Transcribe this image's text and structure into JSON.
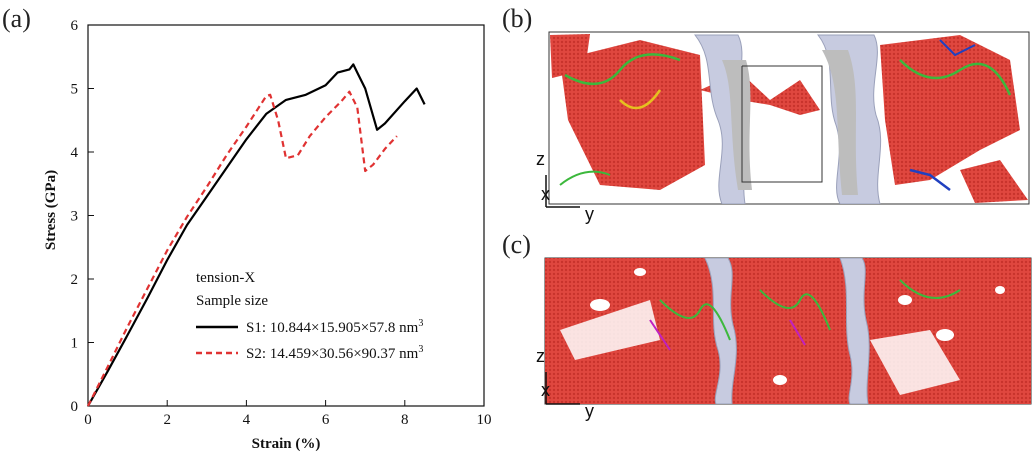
{
  "panels": {
    "a": "(a)",
    "b": "(b)",
    "c": "(c)"
  },
  "chart_data": {
    "type": "line",
    "xlabel": "Strain (%)",
    "ylabel": "Stress (GPa)",
    "xlim": [
      0,
      10
    ],
    "ylim": [
      0,
      6
    ],
    "xticks": [
      "0",
      "2",
      "4",
      "6",
      "8",
      "10"
    ],
    "yticks": [
      "0",
      "1",
      "2",
      "3",
      "4",
      "5",
      "6"
    ],
    "legend_title_1": "tension-X",
    "legend_title_2": "Sample size",
    "series": [
      {
        "name": "S1: 10.844×15.905×57.8 nm",
        "superscript": "3",
        "color": "#000000",
        "style": "solid",
        "x": [
          0,
          0.5,
          1.0,
          1.5,
          2.0,
          2.5,
          3.0,
          3.5,
          4.0,
          4.5,
          5.0,
          5.5,
          6.0,
          6.3,
          6.6,
          6.7,
          6.8,
          7.0,
          7.3,
          7.5,
          8.0,
          8.3,
          8.5
        ],
        "y": [
          0,
          0.55,
          1.12,
          1.7,
          2.3,
          2.85,
          3.3,
          3.75,
          4.2,
          4.6,
          4.82,
          4.9,
          5.05,
          5.25,
          5.3,
          5.38,
          5.25,
          5.0,
          4.35,
          4.45,
          4.8,
          5.0,
          4.75
        ]
      },
      {
        "name": "S2: 14.459×30.56×90.37 nm",
        "superscript": "3",
        "color": "#e03232",
        "style": "dashed",
        "x": [
          0,
          0.5,
          1.0,
          1.5,
          2.0,
          2.5,
          3.0,
          3.5,
          4.0,
          4.5,
          4.6,
          4.8,
          5.0,
          5.3,
          5.6,
          6.0,
          6.4,
          6.6,
          6.8,
          7.0,
          7.2,
          7.5,
          7.8
        ],
        "y": [
          0,
          0.62,
          1.25,
          1.85,
          2.45,
          2.98,
          3.45,
          3.95,
          4.4,
          4.88,
          4.9,
          4.5,
          3.9,
          3.95,
          4.25,
          4.55,
          4.8,
          4.95,
          4.7,
          3.7,
          3.8,
          4.05,
          4.25
        ]
      }
    ]
  },
  "axes_b": {
    "z": "z",
    "x": "x",
    "y": "y"
  },
  "axes_c": {
    "z": "z",
    "x": "x",
    "y": "y"
  }
}
